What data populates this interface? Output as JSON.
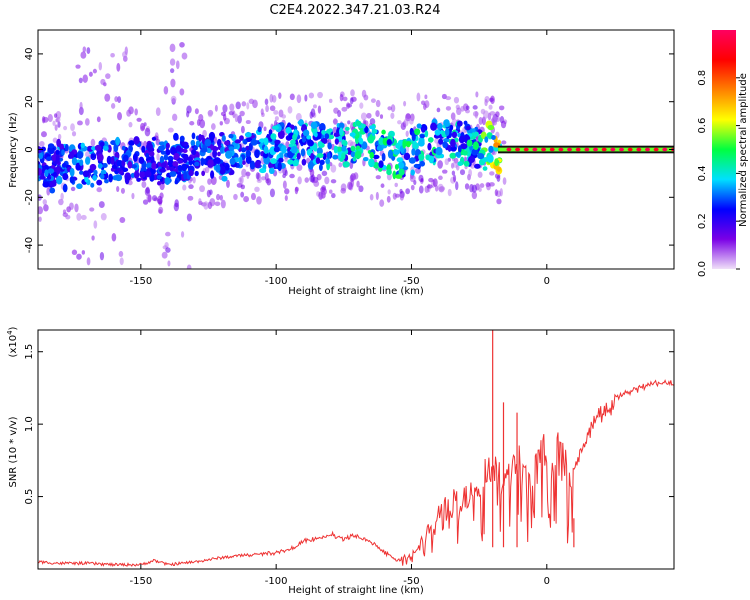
{
  "title": "C2E4.2022.347.21.03.R24",
  "chart_data": [
    {
      "type": "heatmap",
      "xlabel": "Height of straight line (km)",
      "ylabel": "Frequency (Hz)",
      "xlim": [
        -188,
        47
      ],
      "ylim": [
        -50,
        50
      ],
      "xticks": [
        -150,
        -100,
        -50,
        0
      ],
      "xtick_labels": [
        "-150",
        "-100",
        "-50",
        "0"
      ],
      "yticks": [
        -40,
        -20,
        0,
        20,
        40
      ],
      "ytick_labels": [
        "-40",
        "-20",
        "0",
        "20",
        "40"
      ],
      "colorbar": {
        "label": "Normalized spectral amplitude",
        "range": [
          0,
          1
        ],
        "ticks": [
          0,
          0.2,
          0.4,
          0.6,
          0.8
        ],
        "tick_labels": [
          "0.0",
          "0.2",
          "0.4",
          "0.6",
          "0.8"
        ],
        "colors": [
          "#f0e0f8",
          "#7a00e6",
          "#0000ff",
          "#00e0ff",
          "#00ff40",
          "#ffff00",
          "#ff8000",
          "#ff0000",
          "#ff0060"
        ]
      },
      "ridge": [
        {
          "x": -188,
          "f": -8,
          "amp": 0.25
        },
        {
          "x": -170,
          "f": -6,
          "amp": 0.3
        },
        {
          "x": -150,
          "f": -5,
          "amp": 0.25
        },
        {
          "x": -130,
          "f": -4,
          "amp": 0.25
        },
        {
          "x": -110,
          "f": -1,
          "amp": 0.3
        },
        {
          "x": -90,
          "f": 2,
          "amp": 0.35
        },
        {
          "x": -70,
          "f": 3,
          "amp": 0.4
        },
        {
          "x": -55,
          "f": -3,
          "amp": 0.45
        },
        {
          "x": -40,
          "f": 4,
          "amp": 0.4
        },
        {
          "x": -25,
          "f": 2,
          "amp": 0.4
        },
        {
          "x": -18,
          "f": 0,
          "amp": 0.8
        },
        {
          "x": 0,
          "f": 0,
          "amp": 0.95
        },
        {
          "x": 47,
          "f": 0,
          "amp": 1.0
        }
      ],
      "grid": false
    },
    {
      "type": "line",
      "xlabel": "Height of straight line (km)",
      "ylabel": "SNR (10 * v/v)",
      "yscale_label": "(x10",
      "yscale_exp": "4",
      "yscale_close": ")",
      "xlim": [
        -188,
        47
      ],
      "ylim": [
        0,
        1.65
      ],
      "xticks": [
        -150,
        -100,
        -50,
        0
      ],
      "xtick_labels": [
        "-150",
        "-100",
        "-50",
        "0"
      ],
      "yticks": [
        0.5,
        1.0,
        1.5
      ],
      "ytick_labels": [
        "0.5",
        "1.0",
        "1.5"
      ],
      "color": "#ee3333",
      "series": [
        {
          "x": [
            -188,
            -180,
            -170,
            -160,
            -150,
            -145,
            -140,
            -130,
            -120,
            -110,
            -100,
            -95,
            -90,
            -85,
            -80,
            -75,
            -70,
            -65,
            -60,
            -55,
            -50,
            -45,
            -40,
            -35,
            -30,
            -25,
            -22,
            -20,
            -18,
            -15,
            -12,
            -10,
            -5,
            0,
            5,
            8,
            10,
            15,
            20,
            25,
            30,
            35,
            40,
            47
          ],
          "y": [
            0.05,
            0.04,
            0.04,
            0.03,
            0.03,
            0.06,
            0.03,
            0.05,
            0.08,
            0.1,
            0.12,
            0.14,
            0.2,
            0.22,
            0.25,
            0.22,
            0.24,
            0.2,
            0.12,
            0.06,
            0.12,
            0.3,
            0.45,
            0.55,
            0.6,
            0.7,
            0.8,
            0.95,
            0.75,
            0.8,
            0.85,
            0.85,
            0.9,
            0.95,
            0.95,
            0.85,
            0.75,
            1.0,
            1.15,
            1.2,
            1.24,
            1.27,
            1.3,
            1.3
          ]
        }
      ],
      "spikes": [
        {
          "x": -20,
          "y": 1.65
        },
        {
          "x": -16,
          "y": 1.15
        },
        {
          "x": -11,
          "y": 1.08
        },
        {
          "x": 10,
          "y": 0.35
        }
      ],
      "grid": false
    }
  ]
}
